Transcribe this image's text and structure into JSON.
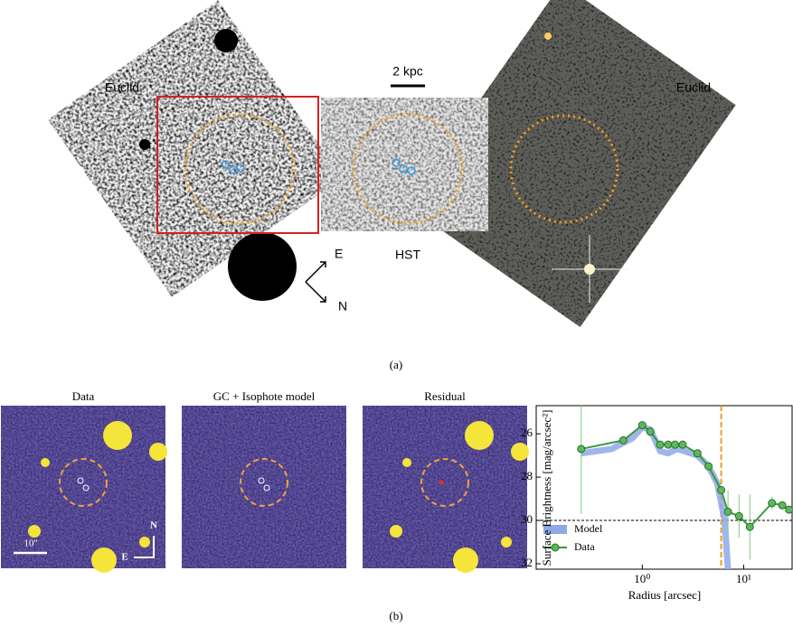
{
  "panel_a": {
    "labels": {
      "euclid_left": "Euclid",
      "scale": "2 kpc",
      "hst": "HST",
      "euclid_right": "Euclid",
      "east": "E",
      "north": "N"
    },
    "caption": "(a)"
  },
  "panel_b": {
    "titles": [
      "Data",
      "GC + Isophote model",
      "Residual"
    ],
    "scale": "10''",
    "north": "N",
    "east": "E",
    "caption": "(b)"
  },
  "chart_data": {
    "type": "line",
    "xlabel": "Radius [arcsec]",
    "ylabel": "Surface Brightness [mag/arcsec²]",
    "xscale": "log",
    "xlim": [
      0.09,
      30
    ],
    "xticks": [
      {
        "value": 1,
        "label": "10⁰"
      },
      {
        "value": 10,
        "label": "10¹"
      }
    ],
    "ylim": [
      32.25,
      24.7
    ],
    "yticks": [
      26,
      28,
      30,
      32
    ],
    "hline": 30,
    "vline": 6,
    "vline_color": "#e8a020",
    "legend": "lower left",
    "series": [
      {
        "name": "Model",
        "color": "#8fa8e6",
        "x": [
          0.25,
          0.5,
          0.8,
          1.0,
          1.2,
          1.5,
          1.8,
          2.2,
          2.6,
          3.5,
          4.5,
          5.5,
          6.5,
          7.0
        ],
        "values": [
          26.9,
          26.7,
          26.2,
          25.7,
          25.8,
          26.8,
          26.9,
          26.7,
          26.8,
          27.0,
          27.5,
          28.3,
          30.0,
          32.3
        ]
      },
      {
        "name": "Data",
        "color": "#3a9a3a",
        "x": [
          0.25,
          0.65,
          1.0,
          1.2,
          1.5,
          1.8,
          2.1,
          2.5,
          3.5,
          4.5,
          6,
          7,
          9,
          11.5,
          19,
          24,
          28
        ],
        "values": [
          26.7,
          26.3,
          25.6,
          25.9,
          26.5,
          26.5,
          26.5,
          26.5,
          26.9,
          27.5,
          28.6,
          29.6,
          29.8,
          30.3,
          29.2,
          29.3,
          29.5
        ],
        "errors": [
          3.0,
          0.1,
          0.1,
          0.1,
          0.1,
          0.1,
          0.1,
          0.1,
          0.1,
          0.1,
          0.2,
          1.0,
          1.0,
          1.5,
          0.3,
          0.1,
          0.1
        ]
      }
    ]
  }
}
